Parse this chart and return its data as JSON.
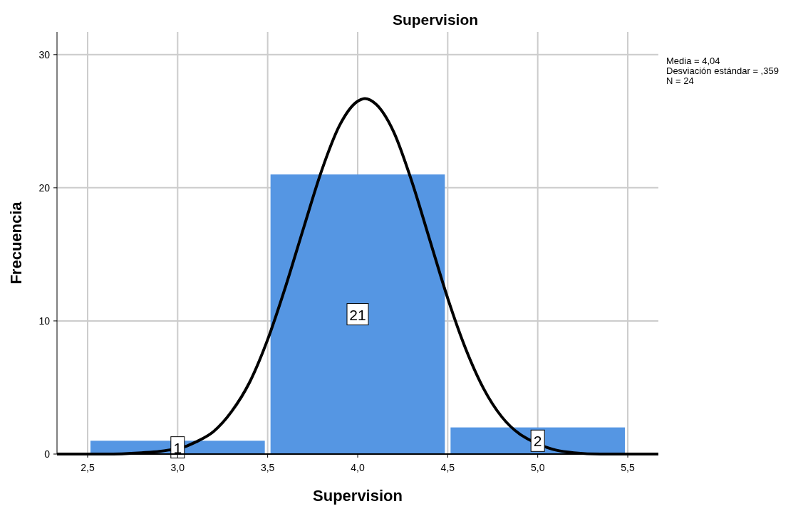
{
  "chart_data": {
    "type": "histogram",
    "title": "Supervision",
    "xlabel": "Supervision",
    "ylabel": "Frecuencia",
    "bins": [
      2.5,
      3.5,
      4.5,
      5.5
    ],
    "values": [
      1,
      21,
      2
    ],
    "color": "#5596e3",
    "value_labels": [
      "1",
      "21",
      "2"
    ],
    "xlim": [
      2.33,
      5.67
    ],
    "xticks": [
      {
        "value": 2.5,
        "label": "2,5"
      },
      {
        "value": 3,
        "label": "3,0"
      },
      {
        "value": 3.5,
        "label": "3,5"
      },
      {
        "value": 4,
        "label": "4,0"
      },
      {
        "value": 4.5,
        "label": "4,5"
      },
      {
        "value": 5,
        "label": "5,0"
      },
      {
        "value": 5.5,
        "label": "5,5"
      }
    ],
    "ylim": [
      0,
      31.7
    ],
    "yticks": [
      0,
      10,
      20,
      30
    ],
    "grid": true,
    "annotations": [
      "Media = 4,04",
      "Desviación estándar = ,359",
      "N = 24"
    ],
    "series": [
      {
        "type": "line",
        "color": "#000000",
        "x": [
          2.33,
          2.6,
          2.8,
          2.9,
          2.95,
          3.05,
          3.1,
          3.2,
          3.3,
          3.4,
          3.5,
          3.6,
          3.7,
          3.8,
          3.9,
          4.0,
          4.04,
          4.1,
          4.2,
          4.3,
          4.4,
          4.5,
          4.6,
          4.7,
          4.8,
          4.9,
          4.95,
          5.05,
          5.1,
          5.2,
          5.35,
          5.5,
          5.67
        ],
        "values": [
          0,
          0,
          0.1,
          0.2,
          0.3,
          0.6,
          0.9,
          1.7,
          3.2,
          5.4,
          8.6,
          12.6,
          17.0,
          21.3,
          24.7,
          26.5,
          26.7,
          26.3,
          24.2,
          20.5,
          16.1,
          11.7,
          7.9,
          4.9,
          2.8,
          1.5,
          1.1,
          0.5,
          0.3,
          0.1,
          0,
          0,
          0
        ]
      }
    ]
  }
}
